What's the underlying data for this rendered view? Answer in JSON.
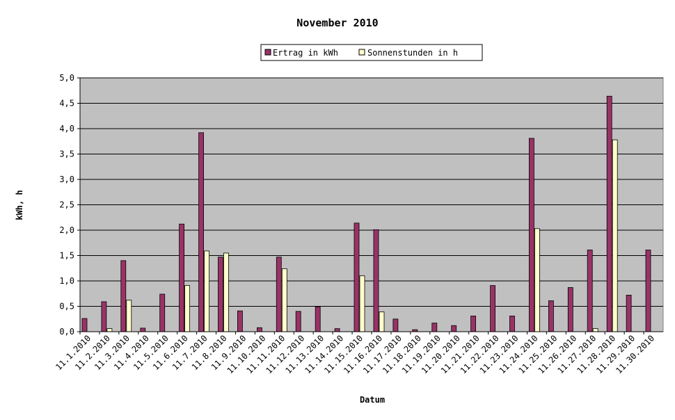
{
  "chart_data": {
    "type": "bar",
    "title": "November 2010",
    "xlabel": "Datum",
    "ylabel": "kWh, h",
    "ylim": [
      0,
      5
    ],
    "yticks": [
      "0,0",
      "0,5",
      "1,0",
      "1,5",
      "2,0",
      "2,5",
      "3,0",
      "3,5",
      "4,0",
      "4,5",
      "5,0"
    ],
    "grid": true,
    "legend_position": "top",
    "categories": [
      "11.1.2010",
      "11.2.2010",
      "11.3.2010",
      "11.4.2010",
      "11.5.2010",
      "11.6.2010",
      "11.7.2010",
      "11.8.2010",
      "11.9.2010",
      "11.10.2010",
      "11.11.2010",
      "11.12.2010",
      "11.13.2010",
      "11.14.2010",
      "11.15.2010",
      "11.16.2010",
      "11.17.2010",
      "11.18.2010",
      "11.19.2010",
      "11.20.2010",
      "11.21.2010",
      "11.22.2010",
      "11.23.2010",
      "11.24.2010",
      "11.25.2010",
      "11.26.2010",
      "11.27.2010",
      "11.28.2010",
      "11.29.2010",
      "11.30.2010"
    ],
    "series": [
      {
        "name": "Ertrag in kWh",
        "color": "#993366",
        "values": [
          0.26,
          0.59,
          1.4,
          0.07,
          0.74,
          2.12,
          3.92,
          1.47,
          0.41,
          0.08,
          1.47,
          0.4,
          0.49,
          0.06,
          2.14,
          2.01,
          0.25,
          0.04,
          0.17,
          0.12,
          0.31,
          0.91,
          0.31,
          3.81,
          0.61,
          0.87,
          1.61,
          4.64,
          0.72,
          1.61
        ]
      },
      {
        "name": "Sonnenstunden in h",
        "color": "#ffffcc",
        "values": [
          0,
          0.06,
          0.62,
          0,
          0,
          0.91,
          1.59,
          1.55,
          0,
          0,
          1.24,
          0,
          0,
          0,
          1.1,
          0.39,
          0,
          0,
          0,
          0,
          0,
          0,
          0,
          2.03,
          0,
          0,
          0.06,
          3.78,
          0,
          0
        ]
      }
    ],
    "plot_background": "#c0c0c0"
  }
}
